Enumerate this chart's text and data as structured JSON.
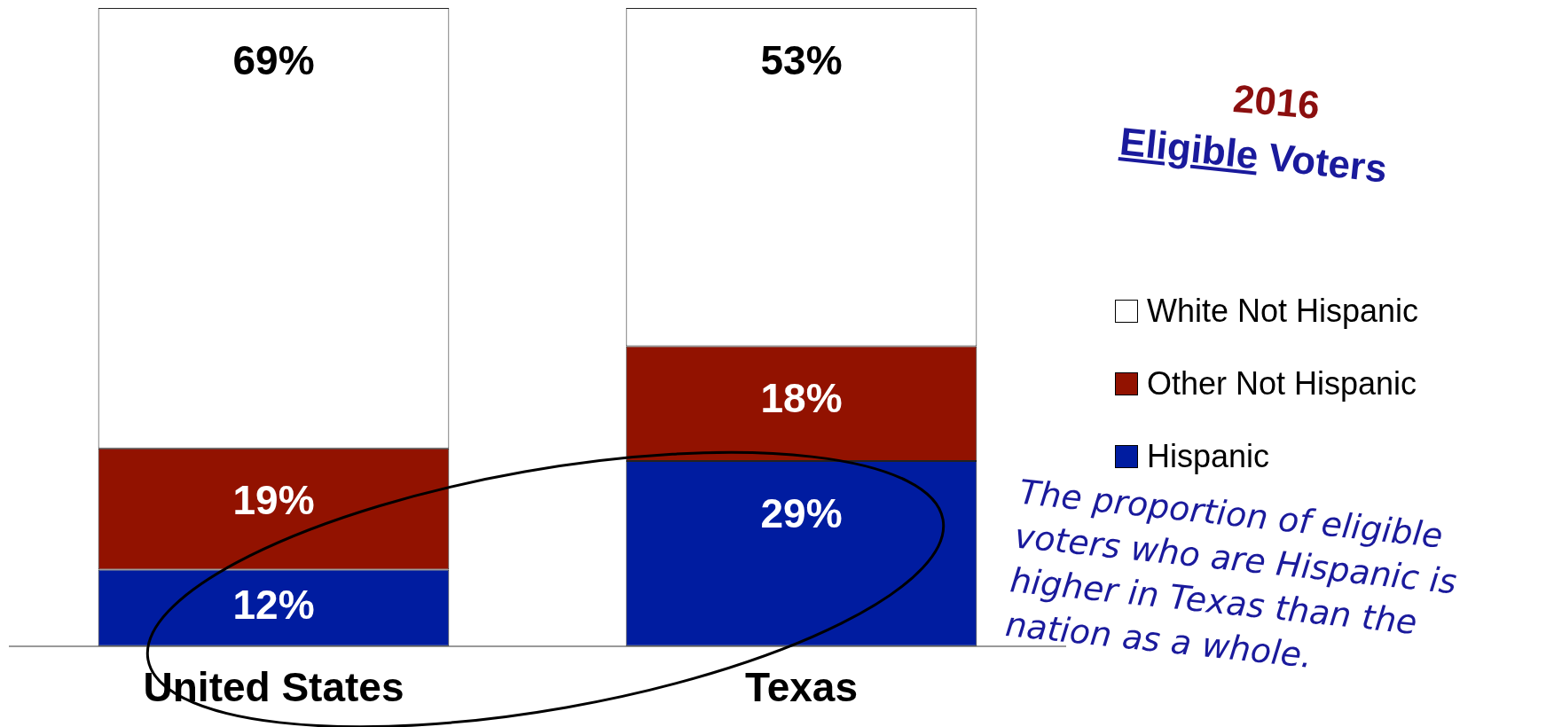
{
  "chart_data": {
    "type": "bar",
    "title": "2016",
    "subtitle": "Eligible Voters",
    "categories": [
      "United States",
      "Texas"
    ],
    "stacked": true,
    "ylim": [
      0,
      100
    ],
    "legend": "right",
    "series": [
      {
        "name": "Hispanic",
        "color": "#001ca0",
        "values": [
          12,
          29
        ],
        "value_labels": [
          "12%",
          "29%"
        ]
      },
      {
        "name": "Other Not Hispanic",
        "color": "#921200",
        "values": [
          19,
          18
        ],
        "value_labels": [
          "19%",
          "18%"
        ]
      },
      {
        "name": "White Not Hispanic",
        "color": "#ffffff",
        "values": [
          69,
          53
        ],
        "value_labels": [
          "69%",
          "53%"
        ]
      }
    ],
    "annotations": [
      "The proportion of eligible voters who are Hispanic is higher in Texas than the nation as a whole."
    ]
  }
}
